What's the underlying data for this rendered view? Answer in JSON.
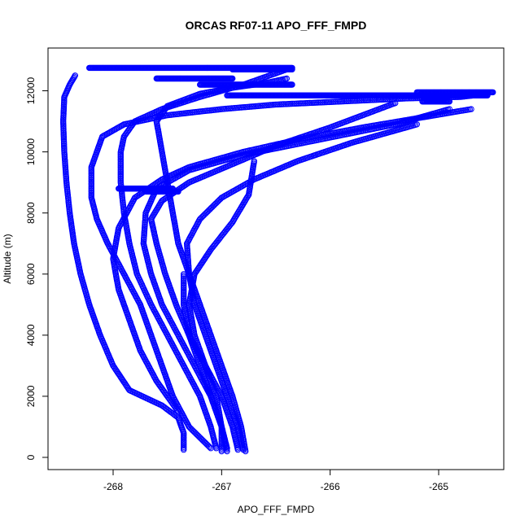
{
  "chart_data": {
    "type": "scatter",
    "title": "ORCAS RF07-11 APO_FFF_FMPD",
    "xlabel": "APO_FFF_FMPD",
    "ylabel": "Altitude (m)",
    "xlim": [
      -268.6,
      -264.4
    ],
    "ylim": [
      -400,
      13400
    ],
    "xticks": [
      -268,
      -267,
      -266,
      -265
    ],
    "yticks": [
      0,
      2000,
      4000,
      6000,
      8000,
      10000,
      12000
    ],
    "xtick_labels": [
      "-268",
      "-267",
      "-266",
      "-265"
    ],
    "ytick_labels": [
      "0",
      "2000",
      "4000",
      "6000",
      "8000",
      "10000",
      "12000"
    ],
    "grid": false,
    "marker": "open-circle",
    "color": "#0000ff",
    "profiles": [
      {
        "x": [
          -267.35,
          -267.35,
          -267.4,
          -267.55,
          -267.85,
          -268.0,
          -268.12,
          -268.22,
          -268.3,
          -268.36,
          -268.4,
          -268.43,
          -268.45,
          -268.46,
          -268.45,
          -268.4,
          -268.35
        ],
        "y": [
          250,
          800,
          1300,
          1700,
          2200,
          3000,
          4000,
          5000,
          6000,
          7000,
          8000,
          9000,
          10000,
          11000,
          11800,
          12200,
          12500
        ]
      },
      {
        "x": [
          -267.1,
          -267.3,
          -267.45,
          -267.55,
          -267.65,
          -267.75,
          -267.9,
          -268.05,
          -268.15,
          -268.2,
          -268.2,
          -268.1,
          -267.9,
          -267.5,
          -267.0,
          -266.5,
          -265.9,
          -265.3,
          -264.8,
          -264.55
        ],
        "y": [
          300,
          1000,
          2000,
          3000,
          4000,
          5000,
          6000,
          7000,
          7800,
          8500,
          9500,
          10500,
          10900,
          11200,
          11400,
          11550,
          11650,
          11750,
          11800,
          11900
        ]
      },
      {
        "x": [
          -267.05,
          -267.1,
          -267.2,
          -267.35,
          -267.5,
          -267.65,
          -267.78,
          -267.85,
          -267.9,
          -267.93,
          -267.93,
          -267.9,
          -267.8,
          -267.55,
          -267.2,
          -266.8,
          -266.4
        ],
        "y": [
          300,
          1000,
          2000,
          3000,
          4000,
          5000,
          6000,
          7000,
          8000,
          9000,
          10000,
          10500,
          11000,
          11400,
          11800,
          12200,
          12700
        ]
      },
      {
        "x": [
          -266.95,
          -267.0,
          -267.1,
          -267.25,
          -267.4,
          -267.55,
          -267.65,
          -267.72,
          -267.7,
          -267.6,
          -267.3,
          -266.8,
          -266.1,
          -265.4,
          -264.9
        ],
        "y": [
          300,
          1000,
          2000,
          3000,
          4000,
          5000,
          6000,
          7000,
          8000,
          8800,
          9400,
          9900,
          10400,
          10900,
          11400
        ]
      },
      {
        "x": [
          -266.85,
          -266.9,
          -267.0,
          -267.15,
          -267.3,
          -267.42,
          -267.52,
          -267.6,
          -267.65,
          -267.55,
          -267.3,
          -266.9,
          -266.5,
          -266.0,
          -265.4
        ],
        "y": [
          250,
          1000,
          2000,
          3000,
          4000,
          5000,
          6000,
          7000,
          7800,
          8400,
          9000,
          9600,
          10200,
          10800,
          11600
        ]
      },
      {
        "x": [
          -266.8,
          -266.85,
          -266.95,
          -267.05,
          -267.15,
          -267.25,
          -267.3,
          -267.32,
          -267.2,
          -267.0,
          -266.7,
          -266.3,
          -265.8,
          -265.2
        ],
        "y": [
          250,
          1000,
          2000,
          3000,
          4000,
          5000,
          6000,
          7000,
          7800,
          8500,
          9100,
          9700,
          10300,
          10900
        ]
      },
      {
        "x": [
          -266.78,
          -266.82,
          -266.9,
          -267.0,
          -267.1,
          -267.2,
          -267.3,
          -267.4,
          -267.45,
          -267.5,
          -267.55,
          -267.6,
          -267.5,
          -267.2,
          -266.9,
          -266.6,
          -266.4
        ],
        "y": [
          200,
          1000,
          2000,
          3000,
          4000,
          5000,
          6000,
          7000,
          8000,
          9000,
          10000,
          11000,
          11500,
          11900,
          12100,
          12250,
          12400
        ]
      },
      {
        "x": [
          -267.0,
          -267.0,
          -267.05,
          -267.15,
          -267.25,
          -267.3,
          -267.25,
          -267.1,
          -266.9,
          -266.75,
          -266.7
        ],
        "y": [
          200,
          1000,
          2000,
          3000,
          4000,
          5000,
          6000,
          6800,
          7700,
          8600,
          9700
        ]
      },
      {
        "x": [
          -266.95,
          -267.0,
          -267.1,
          -267.2,
          -267.3,
          -267.35,
          -267.35
        ],
        "y": [
          200,
          1000,
          2000,
          3000,
          4000,
          5000,
          6000
        ]
      },
      {
        "x": [
          -267.4,
          -267.6,
          -267.75,
          -267.85,
          -267.95,
          -268.0,
          -267.95,
          -267.8,
          -267.55,
          -267.3,
          -266.8,
          -266.3,
          -265.7,
          -265.2,
          -264.7
        ],
        "y": [
          1500,
          2500,
          3500,
          4500,
          5500,
          6500,
          7500,
          8500,
          9100,
          9500,
          10000,
          10400,
          10800,
          11100,
          11400
        ]
      }
    ],
    "flight_legs": [
      {
        "x1": -268.22,
        "x2": -266.35,
        "y": 12750
      },
      {
        "x1": -266.9,
        "x2": -266.35,
        "y": 12700
      },
      {
        "x1": -267.6,
        "x2": -266.9,
        "y": 12400
      },
      {
        "x1": -267.2,
        "x2": -266.35,
        "y": 12200
      },
      {
        "x1": -266.95,
        "x2": -264.55,
        "y": 11850
      },
      {
        "x1": -265.2,
        "x2": -264.5,
        "y": 11950
      },
      {
        "x1": -265.15,
        "x2": -264.9,
        "y": 11650
      },
      {
        "x1": -267.95,
        "x2": -267.45,
        "y": 8800
      },
      {
        "x1": -267.7,
        "x2": -267.4,
        "y": 8700
      }
    ]
  }
}
